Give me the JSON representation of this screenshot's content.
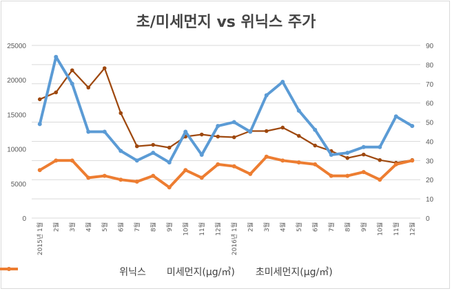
{
  "chart_data": {
    "type": "line",
    "title": "초/미세먼지 vs 위닉스 주가",
    "categories": [
      "2015년 1월",
      "2월",
      "3월",
      "4월",
      "5월",
      "6월",
      "7월",
      "8월",
      "9월",
      "10월",
      "11월",
      "12월",
      "2016년 1월",
      "2월",
      "3월",
      "4월",
      "5월",
      "6월",
      "7월",
      "8월",
      "9월",
      "10월",
      "11월",
      "12월"
    ],
    "y_left": {
      "ylim": [
        0,
        25000
      ],
      "ticks": [
        "0",
        "5000",
        "10000",
        "15000",
        "20000",
        "25000"
      ]
    },
    "y_right": {
      "ylim": [
        0,
        90
      ],
      "ticks": [
        "0",
        "10",
        "20",
        "30",
        "40",
        "50",
        "60",
        "70",
        "80",
        "90"
      ]
    },
    "grid": true,
    "legend_position": "bottom",
    "series": [
      {
        "name": "위닉스",
        "axis": "left",
        "color": "#9e480e",
        "values": [
          17200,
          18200,
          21400,
          18900,
          21700,
          15200,
          10400,
          10600,
          10200,
          11800,
          12100,
          11800,
          11700,
          12600,
          12600,
          13100,
          11900,
          10500,
          9700,
          8700,
          9200,
          8400,
          8000,
          8400
        ]
      },
      {
        "name": "미세먼지(μg/㎥)",
        "axis": "right",
        "color": "#5b9bd5",
        "values": [
          49,
          84,
          70,
          45,
          45,
          35,
          30,
          34,
          29,
          45,
          33,
          48,
          50,
          45,
          64,
          71,
          56,
          46,
          33,
          34,
          37,
          37,
          53,
          48
        ]
      },
      {
        "name": "초미세먼지(μg/㎥)",
        "axis": "right",
        "color": "#ed7d31",
        "values": [
          25,
          30,
          30,
          21,
          22,
          20,
          19,
          22,
          16,
          25,
          21,
          28,
          27,
          23,
          32,
          30,
          29,
          28,
          22,
          22,
          24,
          20,
          28,
          30
        ]
      }
    ]
  }
}
